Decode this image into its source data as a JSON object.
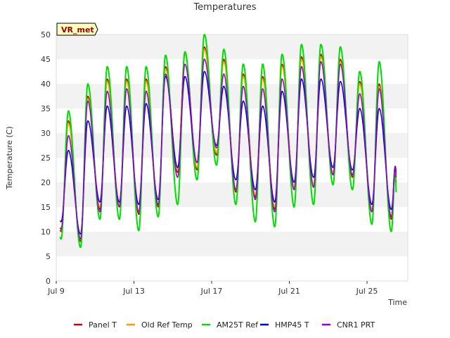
{
  "chart_data": {
    "type": "line",
    "title": "Temperatures",
    "xlabel": "Time",
    "ylabel": "Temperature (C)",
    "badge": "VR_met",
    "xlim": [
      0,
      18.1
    ],
    "ylim": [
      0,
      50
    ],
    "yticks": [
      0,
      5,
      10,
      15,
      20,
      25,
      30,
      35,
      40,
      45,
      50
    ],
    "xticks": [
      {
        "label": "Jul 9",
        "day": 0
      },
      {
        "label": "Jul 13",
        "day": 4
      },
      {
        "label": "Jul 17",
        "day": 8
      },
      {
        "label": "Jul 21",
        "day": 12
      },
      {
        "label": "Jul 25",
        "day": 16
      }
    ],
    "grid": "horizontal bands",
    "legend_position": "bottom",
    "x_start_date": "Jul 9",
    "days": [
      "Jul 9",
      "Jul 10",
      "Jul 11",
      "Jul 12",
      "Jul 13",
      "Jul 14",
      "Jul 15",
      "Jul 16",
      "Jul 17",
      "Jul 18",
      "Jul 19",
      "Jul 20",
      "Jul 21",
      "Jul 22",
      "Jul 23",
      "Jul 24",
      "Jul 25",
      "Jul 26"
    ],
    "series": [
      {
        "name": "Panel T",
        "color": "#cc0000",
        "daily_min": [
          10.0,
          8.0,
          14.5,
          15.0,
          13.5,
          15.0,
          22.0,
          22.5,
          25.5,
          18.0,
          17.0,
          14.5,
          18.5,
          19.0,
          21.5,
          21.0,
          14.0,
          12.5
        ],
        "daily_max": [
          32.5,
          37.5,
          41.0,
          41.0,
          41.0,
          43.5,
          46.5,
          47.5,
          45.0,
          42.0,
          41.5,
          44.0,
          45.5,
          46.0,
          45.0,
          40.5,
          40.0,
          42.0
        ],
        "end": 20.0
      },
      {
        "name": "Old Ref Temp",
        "color": "#ff9900",
        "daily_min": [
          10.5,
          8.5,
          15.0,
          15.5,
          14.0,
          15.5,
          22.5,
          23.0,
          26.0,
          18.5,
          17.5,
          15.0,
          19.0,
          19.5,
          22.0,
          21.5,
          14.5,
          13.0
        ],
        "daily_max": [
          32.0,
          37.0,
          40.5,
          40.5,
          40.5,
          43.0,
          46.0,
          47.0,
          44.5,
          41.5,
          41.0,
          43.5,
          45.0,
          45.5,
          44.5,
          40.0,
          39.5,
          41.5
        ],
        "end": 20.5
      },
      {
        "name": "AM25T Ref",
        "color": "#00dd00",
        "daily_min": [
          8.5,
          6.8,
          12.5,
          12.5,
          10.2,
          13.0,
          15.5,
          20.5,
          23.5,
          15.5,
          12.0,
          11.0,
          15.0,
          15.5,
          19.5,
          18.5,
          11.5,
          10.0
        ],
        "daily_max": [
          34.5,
          40.0,
          43.5,
          43.5,
          43.5,
          45.8,
          46.5,
          50.0,
          47.0,
          44.0,
          44.0,
          46.0,
          48.0,
          48.0,
          47.5,
          42.5,
          44.5,
          44.5
        ],
        "end": 18.0
      },
      {
        "name": "HMP45 T",
        "color": "#0000cc",
        "daily_min": [
          12.0,
          9.5,
          16.0,
          16.0,
          15.5,
          16.5,
          23.0,
          24.0,
          27.5,
          20.5,
          18.5,
          16.0,
          20.0,
          21.0,
          23.0,
          22.5,
          15.5,
          14.5
        ],
        "daily_max": [
          26.5,
          32.5,
          35.5,
          35.5,
          36.0,
          41.5,
          41.5,
          42.5,
          39.5,
          36.5,
          35.5,
          38.5,
          41.0,
          41.0,
          40.5,
          35.0,
          35.0,
          35.0
        ],
        "end": 22.0
      },
      {
        "name": "CNR1 PRT",
        "color": "#9900cc",
        "daily_min": [
          10.5,
          8.5,
          14.0,
          15.0,
          14.0,
          15.5,
          21.0,
          24.0,
          27.0,
          18.5,
          16.5,
          14.0,
          18.5,
          19.0,
          21.5,
          21.5,
          14.0,
          13.0
        ],
        "daily_max": [
          29.5,
          36.5,
          38.5,
          39.0,
          38.5,
          42.0,
          44.0,
          45.0,
          42.0,
          39.5,
          39.0,
          41.0,
          43.5,
          44.5,
          44.0,
          38.0,
          39.0,
          39.0
        ],
        "end": 21.0
      }
    ]
  }
}
